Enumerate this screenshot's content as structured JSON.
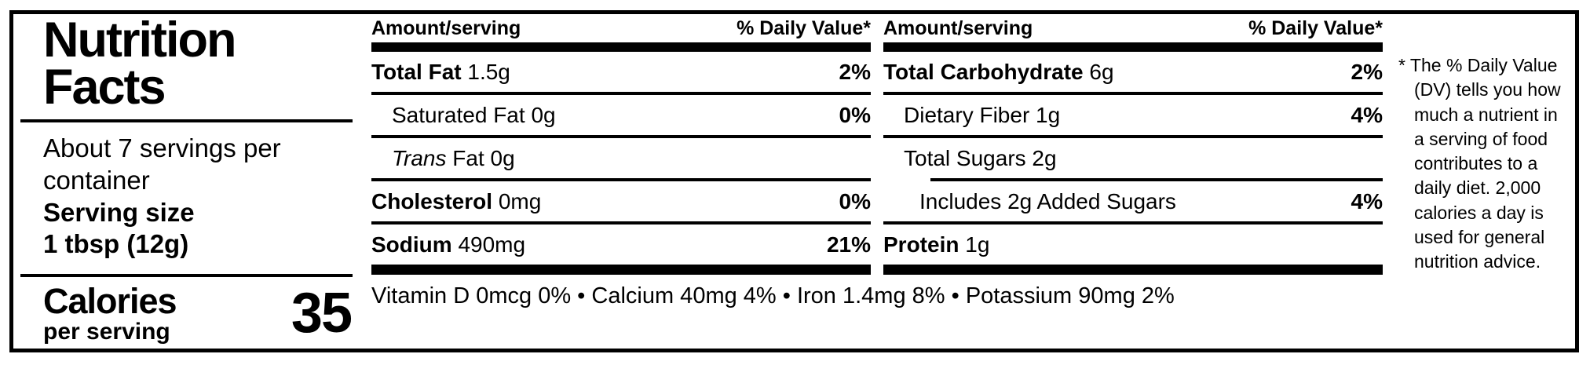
{
  "title": {
    "line1": "Nutrition",
    "line2": "Facts"
  },
  "servings": {
    "per_container": "About 7 servings per container",
    "serving_size_label": "Serving size",
    "serving_size_value": "1 tbsp (12g)"
  },
  "calories": {
    "label": "Calories",
    "sublabel": "per serving",
    "value": "35"
  },
  "column_header": {
    "amount": "Amount/serving",
    "dv": "% Daily Value*"
  },
  "nutrient_columns": [
    {
      "rows": [
        {
          "name": "Total Fat",
          "amount": "1.5g",
          "dv": "2%"
        },
        {
          "name": "Saturated Fat",
          "amount": "0g",
          "dv": "0%"
        },
        {
          "name": "Trans",
          "amount": "Fat 0g",
          "dv": ""
        },
        {
          "name": "Cholesterol",
          "amount": "0mg",
          "dv": "0%"
        },
        {
          "name": "Sodium",
          "amount": "490mg",
          "dv": "21%"
        }
      ]
    },
    {
      "rows": [
        {
          "name": "Total Carbohydrate",
          "amount": "6g",
          "dv": "2%"
        },
        {
          "name": "Dietary Fiber",
          "amount": "1g",
          "dv": "4%"
        },
        {
          "name": "Total Sugars",
          "amount": "2g",
          "dv": ""
        },
        {
          "name": "Includes 2g Added Sugars",
          "amount": "",
          "dv": "4%"
        },
        {
          "name": "Protein",
          "amount": "1g",
          "dv": ""
        }
      ]
    }
  ],
  "micronutrients": "Vitamin D 0mcg 0% • Calcium 40mg 4% • Iron 1.4mg 8% • Potassium 90mg 2%",
  "footnote": "* The % Daily Value (DV) tells you how much a nutrient in a serving of food contributes to a daily diet. 2,000 calories a day is used for general nutrition advice.",
  "colors": {
    "ink": "#000000",
    "background": "#ffffff"
  }
}
